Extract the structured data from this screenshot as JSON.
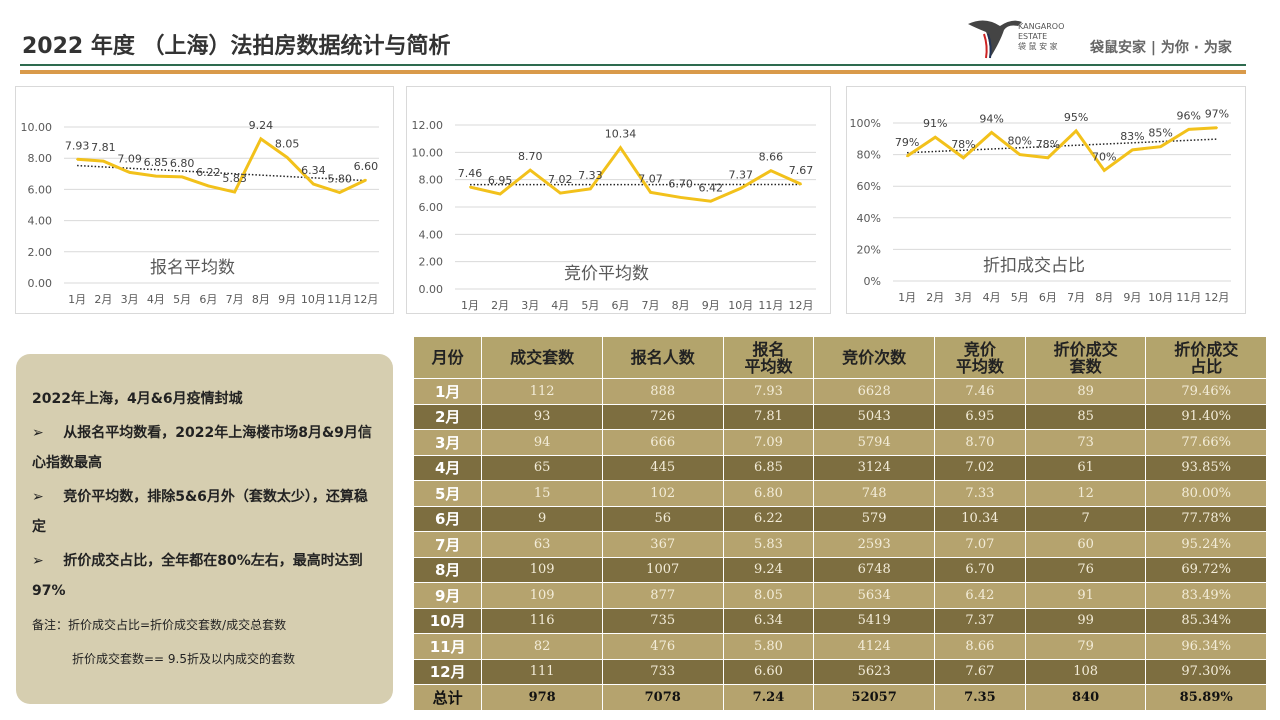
{
  "header": {
    "title": "2022 年度 （上海）法拍房数据统计与简析",
    "logo_text": "KANGAROO ESTATE",
    "logo_sub": "袋 鼠 安 家",
    "slogan": "袋鼠安家 | 为你 · 为家"
  },
  "chart_data": [
    {
      "type": "line",
      "title": "报名平均数",
      "categories": [
        "1月",
        "2月",
        "3月",
        "4月",
        "5月",
        "6月",
        "7月",
        "8月",
        "9月",
        "10月",
        "11月",
        "12月"
      ],
      "values": [
        7.93,
        7.81,
        7.09,
        6.85,
        6.8,
        6.22,
        5.83,
        9.24,
        8.05,
        6.34,
        5.8,
        6.6
      ],
      "labels": [
        "7.93",
        "7.81",
        "7.09",
        "6.85",
        "6.80",
        "6.22",
        "5.83",
        "9.24",
        "8.05",
        "6.34",
        "5.80",
        "6.60"
      ],
      "ylim": [
        0,
        10
      ],
      "yticks": [
        "0.00",
        "2.00",
        "4.00",
        "6.00",
        "8.00",
        "10.00"
      ],
      "trendline": true,
      "color": "#f2c11b"
    },
    {
      "type": "line",
      "title": "竞价平均数",
      "categories": [
        "1月",
        "2月",
        "3月",
        "4月",
        "5月",
        "6月",
        "7月",
        "8月",
        "9月",
        "10月",
        "11月",
        "12月"
      ],
      "values": [
        7.46,
        6.95,
        8.7,
        7.02,
        7.33,
        10.34,
        7.07,
        6.7,
        6.42,
        7.37,
        8.66,
        7.67
      ],
      "labels": [
        "7.46",
        "6.95",
        "8.70",
        "7.02",
        "7.33",
        "10.34",
        "7.07",
        "6.70",
        "6.42",
        "7.37",
        "8.66",
        "7.67"
      ],
      "ylim": [
        0,
        12
      ],
      "yticks": [
        "0.00",
        "2.00",
        "4.00",
        "6.00",
        "8.00",
        "10.00",
        "12.00"
      ],
      "trendline": true,
      "color": "#f2c11b"
    },
    {
      "type": "line",
      "title": "折扣成交占比",
      "categories": [
        "1月",
        "2月",
        "3月",
        "4月",
        "5月",
        "6月",
        "7月",
        "8月",
        "9月",
        "10月",
        "11月",
        "12月"
      ],
      "values": [
        79,
        91,
        78,
        94,
        80,
        78,
        95,
        70,
        83,
        85,
        96,
        97
      ],
      "labels": [
        "79%",
        "91%",
        "78%",
        "94%",
        "80%",
        "78%",
        "95%",
        "70%",
        "83%",
        "85%",
        "96%",
        "97%"
      ],
      "ylim": [
        0,
        100
      ],
      "yticks": [
        "0%",
        "20%",
        "40%",
        "60%",
        "80%",
        "100%"
      ],
      "trendline": true,
      "color": "#f2c11b"
    }
  ],
  "notes": {
    "heading": "2022年上海，4月&6月疫情封城",
    "bullet": "➢",
    "items": [
      "从报名平均数看，2022年上海楼市场8月&9月信心指数最高",
      "竞价平均数，排除5&6月外（套数太少），还算稳定",
      "折价成交占比，全年都在80%左右，最高时达到97%"
    ],
    "remark1": "备注：折价成交占比=折价成交套数/成交总套数",
    "remark2": "折价成交套数== 9.5折及以内成交的套数"
  },
  "table": {
    "headers": [
      "月份",
      "成交套数",
      "报名人数",
      "报名\n平均数",
      "竞价次数",
      "竞价\n平均数",
      "折价成交\n套数",
      "折价成交\n占比"
    ],
    "rows": [
      [
        "1月",
        "112",
        "888",
        "7.93",
        "6628",
        "7.46",
        "89",
        "79.46%"
      ],
      [
        "2月",
        "93",
        "726",
        "7.81",
        "5043",
        "6.95",
        "85",
        "91.40%"
      ],
      [
        "3月",
        "94",
        "666",
        "7.09",
        "5794",
        "8.70",
        "73",
        "77.66%"
      ],
      [
        "4月",
        "65",
        "445",
        "6.85",
        "3124",
        "7.02",
        "61",
        "93.85%"
      ],
      [
        "5月",
        "15",
        "102",
        "6.80",
        "748",
        "7.33",
        "12",
        "80.00%"
      ],
      [
        "6月",
        "9",
        "56",
        "6.22",
        "579",
        "10.34",
        "7",
        "77.78%"
      ],
      [
        "7月",
        "63",
        "367",
        "5.83",
        "2593",
        "7.07",
        "60",
        "95.24%"
      ],
      [
        "8月",
        "109",
        "1007",
        "9.24",
        "6748",
        "6.70",
        "76",
        "69.72%"
      ],
      [
        "9月",
        "109",
        "877",
        "8.05",
        "5634",
        "6.42",
        "91",
        "83.49%"
      ],
      [
        "10月",
        "116",
        "735",
        "6.34",
        "5419",
        "7.37",
        "99",
        "85.34%"
      ],
      [
        "11月",
        "82",
        "476",
        "5.80",
        "4124",
        "8.66",
        "79",
        "96.34%"
      ],
      [
        "12月",
        "111",
        "733",
        "6.60",
        "5623",
        "7.67",
        "108",
        "97.30%"
      ]
    ],
    "total": [
      "总计",
      "978",
      "7078",
      "7.24",
      "52057",
      "7.35",
      "840",
      "85.89%"
    ]
  }
}
